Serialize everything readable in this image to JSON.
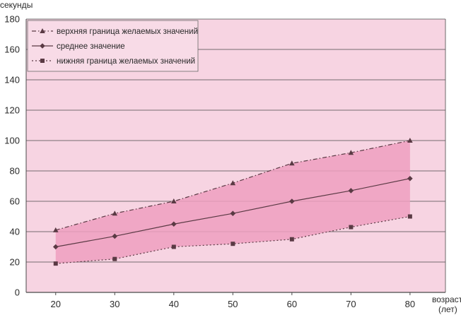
{
  "chart_data": {
    "type": "line",
    "title": "",
    "ylabel": "секунды",
    "xlabel_line1": "возраст",
    "xlabel_line2": "(лет)",
    "x": [
      20,
      30,
      40,
      50,
      60,
      70,
      80
    ],
    "xlim": [
      15,
      86
    ],
    "ylim": [
      0,
      180
    ],
    "yticks": [
      0,
      20,
      40,
      60,
      80,
      100,
      120,
      140,
      160,
      180
    ],
    "grid": true,
    "legend_position": "top-left",
    "band_between": [
      "верхняя граница желаемых значений",
      "нижняя граница желаемых значений"
    ],
    "colors": {
      "background": "#f7d4e2",
      "band": "#ee9fc0",
      "line": "#5a3a44",
      "grid": "#4a4a4a"
    },
    "series": [
      {
        "name": "верхняя граница желаемых значений",
        "marker": "triangle",
        "dash": "dashdot",
        "values": [
          41,
          52,
          60,
          72,
          85,
          92,
          100
        ]
      },
      {
        "name": "среднее значение",
        "marker": "diamond",
        "dash": "solid",
        "values": [
          30,
          37,
          45,
          52,
          60,
          67,
          75
        ]
      },
      {
        "name": "нижняя граница желаемых значений",
        "marker": "square",
        "dash": "dotted",
        "values": [
          19,
          22,
          30,
          32,
          35,
          43,
          50
        ]
      }
    ]
  }
}
